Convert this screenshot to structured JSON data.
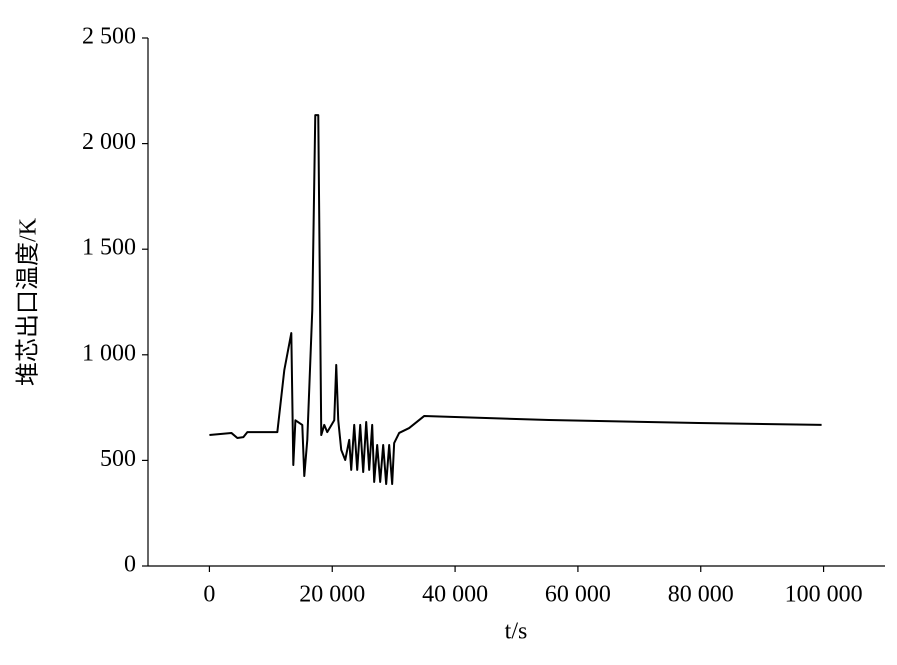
{
  "chart_data": {
    "type": "line",
    "x_label": "t/s",
    "y_label": "堆芯出口温度/K",
    "x": [
      0,
      3577,
      4550,
      5528,
      6179,
      11057,
      12195,
      13333,
      13659,
      14000,
      15122,
      15447,
      15935,
      16748,
      17236,
      17724,
      18211,
      18699,
      19187,
      20325,
      20650,
      20976,
      21463,
      22114,
      22764,
      23089,
      23577,
      24065,
      24553,
      25040,
      25528,
      26016,
      26504,
      26829,
      27317,
      27805,
      28293,
      28780,
      29268,
      29756,
      30081,
      30894,
      32520,
      34959,
      55285,
      79675,
      99675
    ],
    "series": [
      {
        "color": "#000000",
        "values": [
          620,
          630,
          606,
          610,
          634,
          634,
          928,
          1103,
          478,
          690,
          668,
          426,
          597,
          1212,
          2135,
          2135,
          620,
          668,
          634,
          690,
          952,
          690,
          550,
          502,
          597,
          455,
          668,
          455,
          668,
          445,
          682,
          455,
          668,
          398,
          573,
          398,
          573,
          388,
          573,
          388,
          582,
          630,
          653,
          710,
          691,
          677,
          668
        ]
      }
    ],
    "xlim": [
      -10000,
      110000
    ],
    "xticks": [
      0,
      {
        "value": 20000,
        "label": "20 000"
      },
      {
        "value": 40000,
        "label": "40 000"
      },
      {
        "value": 60000,
        "label": "60 000"
      },
      {
        "value": 80000,
        "label": "80 000"
      },
      {
        "value": 100000,
        "label": "100 000"
      }
    ],
    "ylim": [
      0,
      2500
    ],
    "yticks": [
      0,
      500,
      {
        "value": 1000,
        "label": "1 000"
      },
      {
        "value": 1500,
        "label": "1 500"
      },
      {
        "value": 2000,
        "label": "2 000"
      },
      {
        "value": 2500,
        "label": "2 500"
      }
    ]
  }
}
